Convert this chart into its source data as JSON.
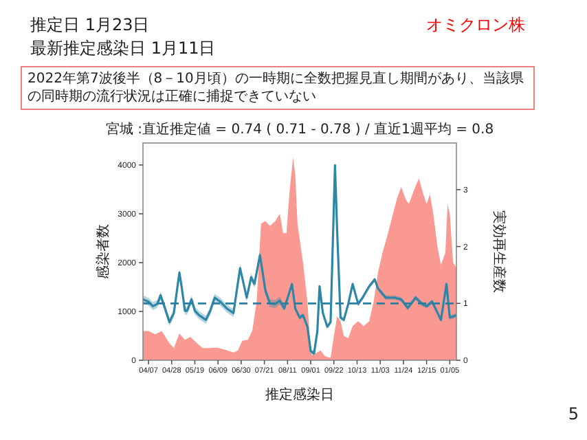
{
  "chart_data": {
    "type": "area",
    "title": "宮城 :直近推定値 = 0.74 ( 0.71 - 0.78 ) / 直近1週平均 = 0.8",
    "annotations": [
      "推定日  1月23日",
      "最新推定感染日  1月11日",
      "オミクロン株",
      "2022年第7波後半（8－10月頃）の一時期に全数把握見直し期間があり、当該県の同時期の流行状況は正確に捕捉できていない",
      "5"
    ],
    "xlabel": "推定感染日",
    "ylabel": "感染者数",
    "y2label": "実効再生産数",
    "xlim": [
      "2022-04-02",
      "2023-01-11"
    ],
    "xticks": [
      {
        "value": "2022-04-07",
        "label": "04/07"
      },
      {
        "value": "2022-04-28",
        "label": "04/28"
      },
      {
        "value": "2022-05-19",
        "label": "05/19"
      },
      {
        "value": "2022-06-09",
        "label": "06/09"
      },
      {
        "value": "2022-06-30",
        "label": "06/30"
      },
      {
        "value": "2022-07-21",
        "label": "07/21"
      },
      {
        "value": "2022-08-11",
        "label": "08/11"
      },
      {
        "value": "2022-09-01",
        "label": "09/01"
      },
      {
        "value": "2022-09-22",
        "label": "09/22"
      },
      {
        "value": "2022-10-13",
        "label": "10/13"
      },
      {
        "value": "2022-11-03",
        "label": "11/03"
      },
      {
        "value": "2022-11-24",
        "label": "11/24"
      },
      {
        "value": "2022-12-15",
        "label": "12/15"
      },
      {
        "value": "2023-01-05",
        "label": "01/05"
      }
    ],
    "ylim": [
      0,
      4450
    ],
    "yticks": [
      0,
      1000,
      2000,
      3000,
      4000
    ],
    "y2lim": [
      0,
      3.82
    ],
    "y2ticks": [
      0,
      1,
      2,
      3
    ],
    "ref_lines": [
      {
        "axis": "y2",
        "value": 1,
        "color": "#2a7fa0",
        "line_style": "dashed"
      }
    ],
    "series": [
      {
        "color": "#f8877f",
        "x": [
          "2022-04-02",
          "2022-04-07",
          "2022-04-13",
          "2022-04-19",
          "2022-04-26",
          "2022-04-30",
          "2022-05-05",
          "2022-05-10",
          "2022-05-15",
          "2022-05-21",
          "2022-05-26",
          "2022-06-02",
          "2022-06-08",
          "2022-06-15",
          "2022-06-23",
          "2022-06-27",
          "2022-07-01",
          "2022-07-06",
          "2022-07-10",
          "2022-07-14",
          "2022-07-18",
          "2022-07-22",
          "2022-07-26",
          "2022-07-31",
          "2022-08-04",
          "2022-08-07",
          "2022-08-10",
          "2022-08-13",
          "2022-08-16",
          "2022-08-18",
          "2022-08-20",
          "2022-08-25",
          "2022-08-29",
          "2022-08-31",
          "2022-09-02",
          "2022-09-06",
          "2022-09-10",
          "2022-09-14",
          "2022-09-19",
          "2022-09-22",
          "2022-09-25",
          "2022-09-28",
          "2022-10-01",
          "2022-10-05",
          "2022-10-09",
          "2022-10-14",
          "2022-10-19",
          "2022-10-24",
          "2022-10-28",
          "2022-11-01",
          "2022-11-05",
          "2022-11-10",
          "2022-11-14",
          "2022-11-18",
          "2022-11-22",
          "2022-11-26",
          "2022-11-29",
          "2022-12-03",
          "2022-12-08",
          "2022-12-12",
          "2022-12-15",
          "2022-12-18",
          "2022-12-21",
          "2022-12-25",
          "2022-12-28",
          "2023-01-01",
          "2023-01-03",
          "2023-01-05",
          "2023-01-08",
          "2023-01-11"
        ],
        "values": [
          600,
          600,
          530,
          600,
          350,
          250,
          550,
          420,
          480,
          350,
          250,
          250,
          260,
          220,
          160,
          200,
          400,
          420,
          600,
          1200,
          2800,
          2850,
          2750,
          2850,
          3000,
          2600,
          2600,
          3500,
          4150,
          3800,
          2800,
          2000,
          1200,
          500,
          100,
          150,
          200,
          80,
          50,
          500,
          900,
          800,
          500,
          450,
          700,
          800,
          700,
          800,
          1200,
          1800,
          2200,
          2600,
          2950,
          3300,
          3550,
          3300,
          3200,
          3450,
          3730,
          3400,
          3200,
          3400,
          3000,
          2300,
          1950,
          2200,
          3200,
          3000,
          2000,
          1900
        ]
      },
      {
        "type": "line",
        "axis": "y2",
        "color": "#2e86a6",
        "x": [
          "2022-04-02",
          "2022-04-07",
          "2022-04-11",
          "2022-04-15",
          "2022-04-18",
          "2022-04-22",
          "2022-04-26",
          "2022-04-30",
          "2022-05-05",
          "2022-05-07",
          "2022-05-10",
          "2022-05-12",
          "2022-05-16",
          "2022-05-19",
          "2022-05-23",
          "2022-05-29",
          "2022-06-02",
          "2022-06-06",
          "2022-06-11",
          "2022-06-17",
          "2022-06-23",
          "2022-06-29",
          "2022-07-05",
          "2022-07-09",
          "2022-07-12",
          "2022-07-17",
          "2022-07-22",
          "2022-07-26",
          "2022-07-31",
          "2022-08-04",
          "2022-08-08",
          "2022-08-15",
          "2022-08-18",
          "2022-08-22",
          "2022-08-25",
          "2022-08-29",
          "2022-09-01",
          "2022-09-04",
          "2022-09-07",
          "2022-09-09",
          "2022-09-12",
          "2022-09-16",
          "2022-09-19",
          "2022-09-23",
          "2022-09-25",
          "2022-09-28",
          "2022-10-01",
          "2022-10-05",
          "2022-10-09",
          "2022-10-14",
          "2022-10-18",
          "2022-10-24",
          "2022-10-29",
          "2022-11-01",
          "2022-11-08",
          "2022-11-16",
          "2022-11-22",
          "2022-11-28",
          "2022-12-05",
          "2022-12-11",
          "2022-12-15",
          "2022-12-20",
          "2022-12-25",
          "2022-12-28",
          "2023-01-02",
          "2023-01-05",
          "2023-01-08",
          "2023-01-11"
        ],
        "values": [
          1.07,
          1.03,
          0.95,
          0.99,
          1.14,
          0.91,
          0.67,
          0.83,
          1.54,
          1.3,
          0.87,
          0.87,
          1.07,
          0.87,
          0.79,
          0.71,
          0.87,
          1.1,
          1.03,
          0.91,
          0.83,
          1.62,
          1.1,
          1.46,
          1.34,
          1.85,
          1.22,
          1.0,
          0.99,
          1.05,
          0.91,
          1.34,
          0.91,
          0.75,
          0.79,
          0.59,
          0.16,
          0.12,
          0.51,
          1.3,
          0.83,
          0.59,
          0.67,
          3.43,
          2.25,
          0.75,
          0.71,
          0.99,
          1.34,
          0.99,
          1.1,
          1.3,
          1.42,
          1.26,
          1.1,
          1.1,
          1.07,
          0.92,
          1.1,
          0.99,
          0.95,
          1.03,
          0.83,
          0.71,
          1.34,
          0.75,
          0.77,
          0.79
        ],
        "lower": [
          1.0,
          0.96,
          0.88,
          0.92,
          1.07,
          0.84,
          0.6,
          0.76,
          1.47,
          1.23,
          0.8,
          0.8,
          1.0,
          0.8,
          0.72,
          0.64,
          0.8,
          1.03,
          0.96,
          0.84,
          0.76,
          1.55,
          1.03,
          1.39,
          1.27,
          1.78,
          1.15,
          0.93,
          0.92,
          0.98,
          0.87,
          1.3,
          0.87,
          0.71,
          0.75,
          0.55,
          0.12,
          0.08,
          0.47,
          1.26,
          0.79,
          0.55,
          0.63,
          3.39,
          2.21,
          0.71,
          0.67,
          0.95,
          1.3,
          0.95,
          1.06,
          1.26,
          1.38,
          1.22,
          1.06,
          1.06,
          1.03,
          0.88,
          1.06,
          0.95,
          0.91,
          0.99,
          0.79,
          0.67,
          1.3,
          0.71,
          0.73,
          0.75
        ],
        "upper": [
          1.14,
          1.1,
          1.02,
          1.06,
          1.21,
          0.98,
          0.74,
          0.9,
          1.61,
          1.37,
          0.94,
          0.94,
          1.14,
          0.94,
          0.86,
          0.78,
          0.94,
          1.17,
          1.1,
          0.98,
          0.9,
          1.69,
          1.17,
          1.53,
          1.41,
          1.92,
          1.29,
          1.07,
          1.06,
          1.12,
          0.95,
          1.38,
          0.95,
          0.79,
          0.83,
          0.63,
          0.2,
          0.16,
          0.55,
          1.34,
          0.87,
          0.63,
          0.71,
          3.47,
          2.29,
          0.79,
          0.75,
          1.03,
          1.38,
          1.03,
          1.14,
          1.34,
          1.46,
          1.3,
          1.14,
          1.14,
          1.11,
          0.96,
          1.14,
          1.03,
          0.99,
          1.07,
          0.87,
          0.75,
          1.38,
          0.79,
          0.81,
          0.83
        ]
      }
    ]
  }
}
